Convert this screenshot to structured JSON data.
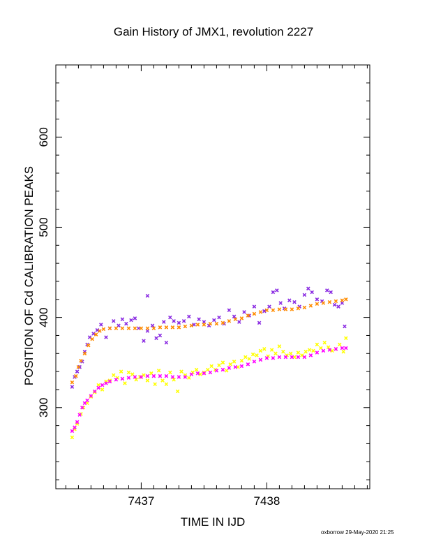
{
  "footer": "oxborrow 29-May-2020 21:25",
  "chart_data": {
    "type": "scatter",
    "title": "Gain History of JMX1, revolution 2227",
    "xlabel": "TIME IN IJD",
    "ylabel": "POSITION OF Cd CALIBRATION PEAKS",
    "xlim": [
      7436.32,
      7438.82
    ],
    "ylim": [
      210,
      680
    ],
    "xticks": [
      7437,
      7438
    ],
    "yticks": [
      300,
      400,
      500,
      600
    ],
    "grid": false,
    "series": [
      {
        "color": "#8a2be2",
        "marker": "x",
        "points": [
          [
            7436.45,
            323
          ],
          [
            7436.47,
            334
          ],
          [
            7436.49,
            340
          ],
          [
            7436.51,
            345
          ],
          [
            7436.53,
            351
          ],
          [
            7436.55,
            362
          ],
          [
            7436.57,
            370
          ],
          [
            7436.59,
            378
          ],
          [
            7436.62,
            382
          ],
          [
            7436.65,
            386
          ],
          [
            7436.68,
            392
          ],
          [
            7436.72,
            378
          ],
          [
            7436.75,
            388
          ],
          [
            7436.78,
            396
          ],
          [
            7436.82,
            391
          ],
          [
            7436.85,
            398
          ],
          [
            7436.88,
            393
          ],
          [
            7436.92,
            397
          ],
          [
            7436.95,
            399
          ],
          [
            7436.98,
            388
          ],
          [
            7437.02,
            374
          ],
          [
            7437.05,
            385
          ],
          [
            7437.05,
            424
          ],
          [
            7437.09,
            391
          ],
          [
            7437.12,
            377
          ],
          [
            7437.15,
            380
          ],
          [
            7437.18,
            395
          ],
          [
            7437.2,
            372
          ],
          [
            7437.23,
            400
          ],
          [
            7437.26,
            396
          ],
          [
            7437.3,
            394
          ],
          [
            7437.34,
            396
          ],
          [
            7437.38,
            401
          ],
          [
            7437.42,
            392
          ],
          [
            7437.46,
            398
          ],
          [
            7437.5,
            395
          ],
          [
            7437.54,
            391
          ],
          [
            7437.58,
            397
          ],
          [
            7437.62,
            400
          ],
          [
            7437.66,
            393
          ],
          [
            7437.7,
            408
          ],
          [
            7437.74,
            401
          ],
          [
            7437.78,
            395
          ],
          [
            7437.82,
            406
          ],
          [
            7437.86,
            402
          ],
          [
            7437.9,
            412
          ],
          [
            7437.94,
            394
          ],
          [
            7437.98,
            407
          ],
          [
            7438.02,
            412
          ],
          [
            7438.05,
            428
          ],
          [
            7438.08,
            430
          ],
          [
            7438.11,
            416
          ],
          [
            7438.14,
            410
          ],
          [
            7438.18,
            419
          ],
          [
            7438.22,
            417
          ],
          [
            7438.26,
            412
          ],
          [
            7438.3,
            425
          ],
          [
            7438.33,
            432
          ],
          [
            7438.36,
            428
          ],
          [
            7438.4,
            420
          ],
          [
            7438.44,
            418
          ],
          [
            7438.48,
            430
          ],
          [
            7438.51,
            428
          ],
          [
            7438.54,
            414
          ],
          [
            7438.57,
            412
          ],
          [
            7438.6,
            416
          ],
          [
            7438.62,
            390
          ]
        ]
      },
      {
        "color": "#ff8c00",
        "marker": "x",
        "points": [
          [
            7436.45,
            328
          ],
          [
            7436.48,
            335
          ],
          [
            7436.5,
            345
          ],
          [
            7436.52,
            352
          ],
          [
            7436.55,
            360
          ],
          [
            7436.58,
            369
          ],
          [
            7436.61,
            376
          ],
          [
            7436.64,
            381
          ],
          [
            7436.67,
            385
          ],
          [
            7436.7,
            387
          ],
          [
            7436.75,
            388
          ],
          [
            7436.8,
            388
          ],
          [
            7436.85,
            388
          ],
          [
            7436.9,
            388
          ],
          [
            7436.95,
            388
          ],
          [
            7437.0,
            388
          ],
          [
            7437.05,
            388
          ],
          [
            7437.1,
            388
          ],
          [
            7437.15,
            389
          ],
          [
            7437.2,
            389
          ],
          [
            7437.25,
            389
          ],
          [
            7437.3,
            389
          ],
          [
            7437.35,
            390
          ],
          [
            7437.4,
            391
          ],
          [
            7437.45,
            392
          ],
          [
            7437.5,
            392
          ],
          [
            7437.55,
            393
          ],
          [
            7437.6,
            393
          ],
          [
            7437.65,
            394
          ],
          [
            7437.7,
            396
          ],
          [
            7437.75,
            398
          ],
          [
            7437.8,
            399
          ],
          [
            7437.85,
            402
          ],
          [
            7437.9,
            404
          ],
          [
            7437.95,
            406
          ],
          [
            7438.0,
            408
          ],
          [
            7438.05,
            408
          ],
          [
            7438.1,
            409
          ],
          [
            7438.15,
            409
          ],
          [
            7438.2,
            409
          ],
          [
            7438.25,
            410
          ],
          [
            7438.3,
            411
          ],
          [
            7438.35,
            413
          ],
          [
            7438.4,
            415
          ],
          [
            7438.45,
            416
          ],
          [
            7438.5,
            417
          ],
          [
            7438.55,
            418
          ],
          [
            7438.6,
            419
          ],
          [
            7438.63,
            420
          ]
        ]
      },
      {
        "color": "#ffff00",
        "marker": "x",
        "points": [
          [
            7436.45,
            267
          ],
          [
            7436.47,
            276
          ],
          [
            7436.49,
            282
          ],
          [
            7436.52,
            293
          ],
          [
            7436.54,
            300
          ],
          [
            7436.57,
            305
          ],
          [
            7436.6,
            312
          ],
          [
            7436.63,
            317
          ],
          [
            7436.66,
            325
          ],
          [
            7436.69,
            320
          ],
          [
            7436.72,
            329
          ],
          [
            7436.75,
            330
          ],
          [
            7436.78,
            336
          ],
          [
            7436.81,
            333
          ],
          [
            7436.84,
            340
          ],
          [
            7436.87,
            327
          ],
          [
            7436.9,
            339
          ],
          [
            7436.93,
            337
          ],
          [
            7436.96,
            331
          ],
          [
            7436.99,
            334
          ],
          [
            7437.02,
            336
          ],
          [
            7437.05,
            330
          ],
          [
            7437.08,
            338
          ],
          [
            7437.11,
            326
          ],
          [
            7437.14,
            341
          ],
          [
            7437.17,
            330
          ],
          [
            7437.2,
            326
          ],
          [
            7437.23,
            339
          ],
          [
            7437.26,
            331
          ],
          [
            7437.29,
            318
          ],
          [
            7437.32,
            340
          ],
          [
            7437.35,
            336
          ],
          [
            7437.38,
            333
          ],
          [
            7437.41,
            339
          ],
          [
            7437.44,
            342
          ],
          [
            7437.47,
            337
          ],
          [
            7437.5,
            339
          ],
          [
            7437.53,
            342
          ],
          [
            7437.56,
            346
          ],
          [
            7437.59,
            342
          ],
          [
            7437.62,
            347
          ],
          [
            7437.65,
            350
          ],
          [
            7437.68,
            341
          ],
          [
            7437.71,
            348
          ],
          [
            7437.74,
            351
          ],
          [
            7437.77,
            345
          ],
          [
            7437.8,
            352
          ],
          [
            7437.83,
            356
          ],
          [
            7437.86,
            354
          ],
          [
            7437.89,
            359
          ],
          [
            7437.92,
            358
          ],
          [
            7437.95,
            363
          ],
          [
            7437.98,
            365
          ],
          [
            7438.01,
            357
          ],
          [
            7438.04,
            364
          ],
          [
            7438.07,
            360
          ],
          [
            7438.1,
            368
          ],
          [
            7438.13,
            362
          ],
          [
            7438.16,
            358
          ],
          [
            7438.19,
            360
          ],
          [
            7438.22,
            356
          ],
          [
            7438.25,
            361
          ],
          [
            7438.28,
            358
          ],
          [
            7438.31,
            362
          ],
          [
            7438.34,
            364
          ],
          [
            7438.37,
            363
          ],
          [
            7438.4,
            370
          ],
          [
            7438.43,
            366
          ],
          [
            7438.46,
            372
          ],
          [
            7438.49,
            367
          ],
          [
            7438.52,
            363
          ],
          [
            7438.55,
            365
          ],
          [
            7438.58,
            370
          ],
          [
            7438.61,
            362
          ],
          [
            7438.63,
            377
          ]
        ]
      },
      {
        "color": "#ff00ff",
        "marker": "x",
        "points": [
          [
            7436.45,
            274
          ],
          [
            7436.47,
            278
          ],
          [
            7436.49,
            284
          ],
          [
            7436.51,
            292
          ],
          [
            7436.53,
            300
          ],
          [
            7436.55,
            305
          ],
          [
            7436.57,
            308
          ],
          [
            7436.6,
            313
          ],
          [
            7436.63,
            318
          ],
          [
            7436.66,
            322
          ],
          [
            7436.69,
            325
          ],
          [
            7436.72,
            327
          ],
          [
            7436.75,
            329
          ],
          [
            7436.8,
            331
          ],
          [
            7436.85,
            332
          ],
          [
            7436.9,
            333
          ],
          [
            7436.95,
            334
          ],
          [
            7437.0,
            334
          ],
          [
            7437.05,
            335
          ],
          [
            7437.1,
            335
          ],
          [
            7437.15,
            335
          ],
          [
            7437.2,
            335
          ],
          [
            7437.25,
            334
          ],
          [
            7437.3,
            334
          ],
          [
            7437.35,
            334
          ],
          [
            7437.4,
            337
          ],
          [
            7437.45,
            338
          ],
          [
            7437.5,
            338
          ],
          [
            7437.55,
            339
          ],
          [
            7437.6,
            341
          ],
          [
            7437.65,
            342
          ],
          [
            7437.7,
            344
          ],
          [
            7437.75,
            345
          ],
          [
            7437.8,
            346
          ],
          [
            7437.85,
            348
          ],
          [
            7437.9,
            351
          ],
          [
            7437.95,
            353
          ],
          [
            7438.0,
            355
          ],
          [
            7438.05,
            355
          ],
          [
            7438.1,
            356
          ],
          [
            7438.15,
            356
          ],
          [
            7438.2,
            356
          ],
          [
            7438.25,
            356
          ],
          [
            7438.3,
            356
          ],
          [
            7438.35,
            358
          ],
          [
            7438.4,
            361
          ],
          [
            7438.45,
            363
          ],
          [
            7438.5,
            364
          ],
          [
            7438.55,
            365
          ],
          [
            7438.6,
            366
          ],
          [
            7438.63,
            366
          ]
        ]
      }
    ]
  }
}
